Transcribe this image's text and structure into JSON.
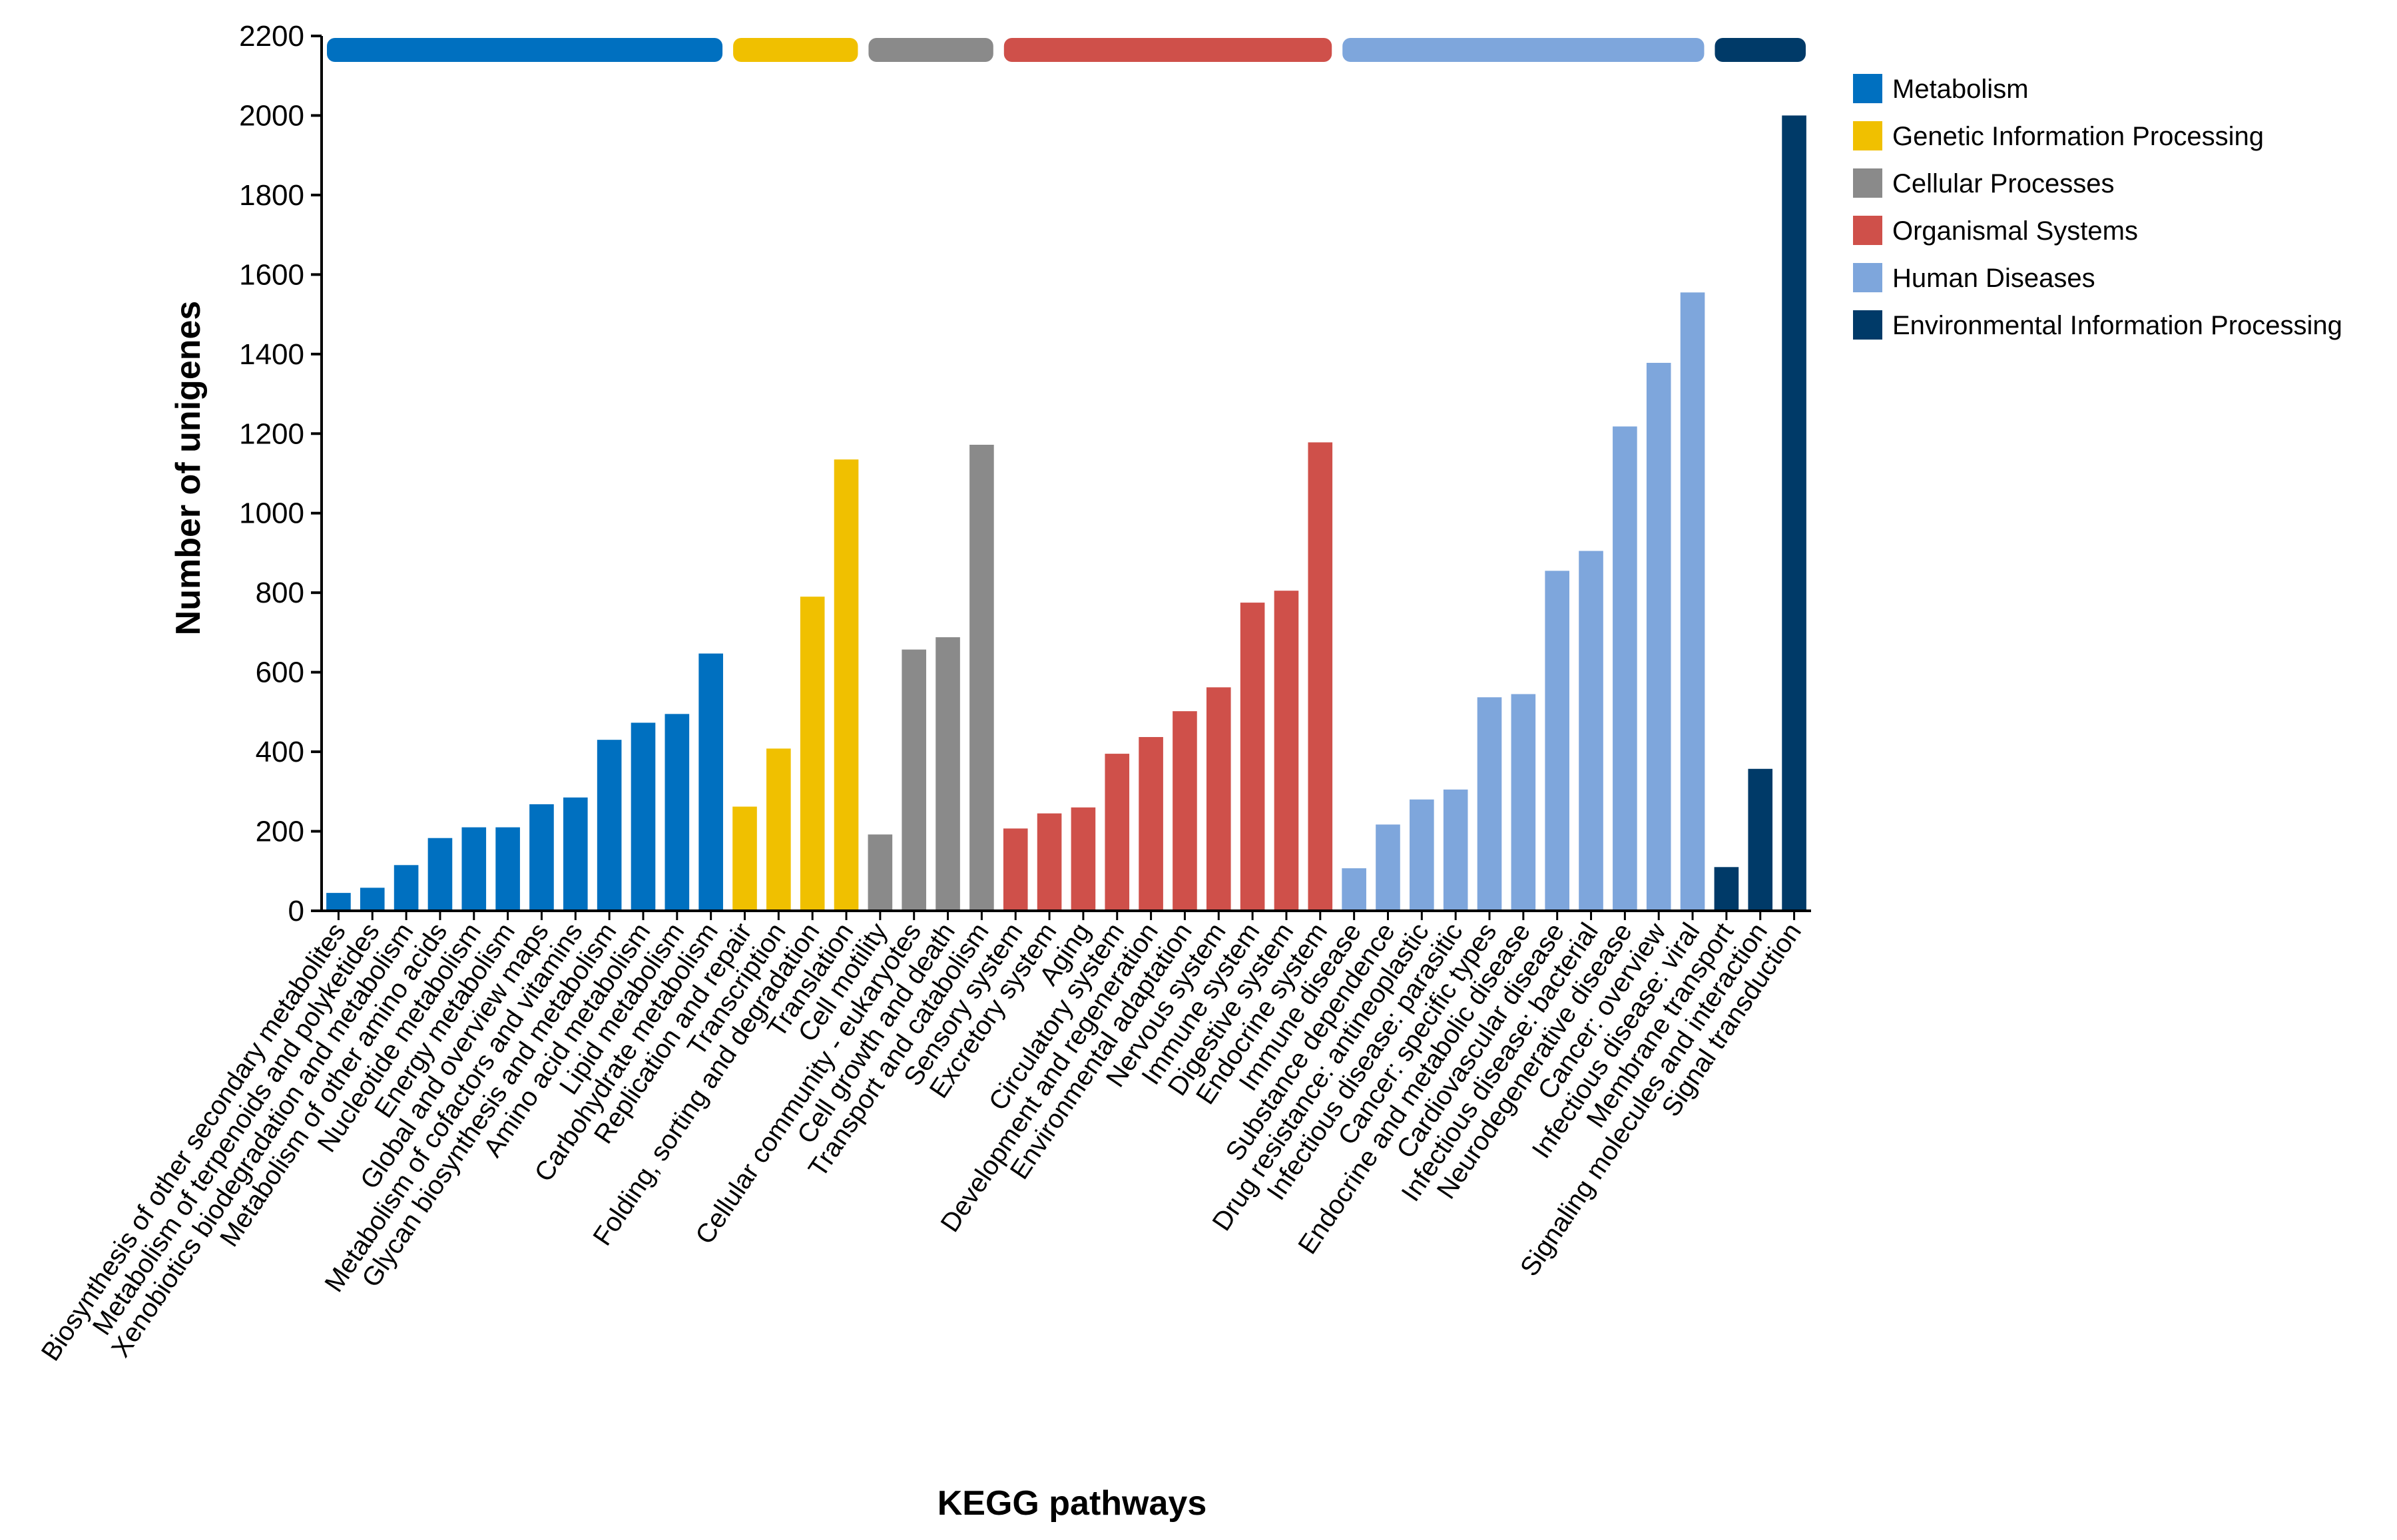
{
  "chart_data": {
    "type": "bar",
    "xlabel": "KEGG pathways",
    "ylabel": "Number of unigenes",
    "ylim": [
      0,
      2200
    ],
    "yticks": [
      0,
      200,
      400,
      600,
      800,
      1000,
      1200,
      1400,
      1600,
      1800,
      2000,
      2200
    ],
    "legend_position": "top-right",
    "groups": [
      {
        "name": "Metabolism",
        "color": "#0070c0"
      },
      {
        "name": "Genetic Information Processing",
        "color": "#f0c000"
      },
      {
        "name": "Cellular Processes",
        "color": "#8a8a8a"
      },
      {
        "name": "Organismal Systems",
        "color": "#cf504a"
      },
      {
        "name": "Human Diseases",
        "color": "#7ea6dc"
      },
      {
        "name": "Environmental Information Processing",
        "color": "#003a68"
      }
    ],
    "bars": [
      {
        "label": "Biosynthesis of other secondary metabolites",
        "value": 45,
        "group": 0
      },
      {
        "label": "Metabolism of terpenoids and polyketides",
        "value": 58,
        "group": 0
      },
      {
        "label": "Xenobiotics biodegradation and metabolism",
        "value": 115,
        "group": 0
      },
      {
        "label": "Metabolism of other amino acids",
        "value": 183,
        "group": 0
      },
      {
        "label": "Nucleotide metabolism",
        "value": 210,
        "group": 0
      },
      {
        "label": "Energy metabolism",
        "value": 210,
        "group": 0
      },
      {
        "label": "Global and overview maps",
        "value": 268,
        "group": 0
      },
      {
        "label": "Metabolism of cofactors and vitamins",
        "value": 285,
        "group": 0
      },
      {
        "label": "Glycan biosynthesis and metabolism",
        "value": 430,
        "group": 0
      },
      {
        "label": "Amino acid metabolism",
        "value": 473,
        "group": 0
      },
      {
        "label": "Lipid metabolism",
        "value": 495,
        "group": 0
      },
      {
        "label": "Carbohydrate metabolism",
        "value": 647,
        "group": 0
      },
      {
        "label": "Replication and repair",
        "value": 262,
        "group": 1
      },
      {
        "label": "Transcription",
        "value": 408,
        "group": 1
      },
      {
        "label": "Folding, sorting and degradation",
        "value": 790,
        "group": 1
      },
      {
        "label": "Translation",
        "value": 1135,
        "group": 1
      },
      {
        "label": "Cell motility",
        "value": 192,
        "group": 2
      },
      {
        "label": "Cellular community - eukaryotes",
        "value": 657,
        "group": 2
      },
      {
        "label": "Cell growth and death",
        "value": 688,
        "group": 2
      },
      {
        "label": "Transport and catabolism",
        "value": 1172,
        "group": 2
      },
      {
        "label": "Sensory system",
        "value": 207,
        "group": 3
      },
      {
        "label": "Excretory system",
        "value": 245,
        "group": 3
      },
      {
        "label": "Aging",
        "value": 260,
        "group": 3
      },
      {
        "label": "Circulatory system",
        "value": 395,
        "group": 3
      },
      {
        "label": "Development and regeneration",
        "value": 437,
        "group": 3
      },
      {
        "label": "Environmental adaptation",
        "value": 502,
        "group": 3
      },
      {
        "label": "Nervous system",
        "value": 562,
        "group": 3
      },
      {
        "label": "Immune system",
        "value": 775,
        "group": 3
      },
      {
        "label": "Digestive system",
        "value": 805,
        "group": 3
      },
      {
        "label": "Endocrine system",
        "value": 1178,
        "group": 3
      },
      {
        "label": "Immune disease",
        "value": 107,
        "group": 4
      },
      {
        "label": "Substance dependence",
        "value": 217,
        "group": 4
      },
      {
        "label": "Drug resistance: antineoplastic",
        "value": 280,
        "group": 4
      },
      {
        "label": "Infectious disease: parasitic",
        "value": 305,
        "group": 4
      },
      {
        "label": "Cancer: specific types",
        "value": 537,
        "group": 4
      },
      {
        "label": "Endocrine and metabolic disease",
        "value": 545,
        "group": 4
      },
      {
        "label": "Cardiovascular disease",
        "value": 855,
        "group": 4
      },
      {
        "label": "Infectious disease: bacterial",
        "value": 905,
        "group": 4
      },
      {
        "label": "Neurodegenerative disease",
        "value": 1218,
        "group": 4
      },
      {
        "label": "Cancer: overview",
        "value": 1378,
        "group": 4
      },
      {
        "label": "Infectious disease: viral",
        "value": 1555,
        "group": 4
      },
      {
        "label": "Membrane transport",
        "value": 110,
        "group": 5
      },
      {
        "label": "Signaling molecules and interaction",
        "value": 357,
        "group": 5
      },
      {
        "label": "Signal transduction",
        "value": 2000,
        "group": 5
      }
    ]
  }
}
